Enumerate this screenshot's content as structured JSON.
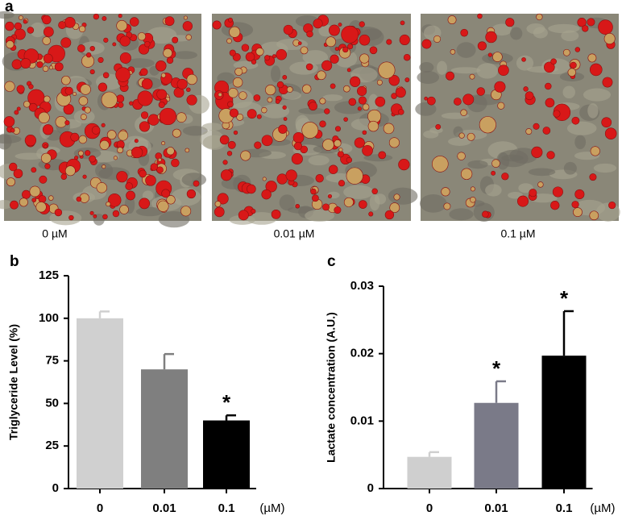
{
  "figure": {
    "panel_a": {
      "label": "a",
      "captions": [
        "0 µM",
        "0.01 µM",
        "0.1 µM"
      ]
    }
  },
  "chart_data": [
    {
      "type": "bar",
      "panel_label": "b",
      "y_label": "Triglyceride Level (%)",
      "x_unit": "(µM)",
      "categories": [
        "0",
        "0.01",
        "0.1"
      ],
      "values": [
        100,
        70,
        40
      ],
      "errors": [
        4,
        9,
        3
      ],
      "colors": [
        "#d0d0d0",
        "#7f7f7f",
        "#000000"
      ],
      "ylim": [
        0,
        125
      ],
      "yticks": [
        0,
        25,
        50,
        75,
        100,
        125
      ],
      "annotations": [
        {
          "category": "0.1",
          "text": "*"
        }
      ]
    },
    {
      "type": "bar",
      "panel_label": "c",
      "y_label": "Lactate concentration (A.U.)",
      "x_unit": "(µM)",
      "categories": [
        "0",
        "0.01",
        "0.1"
      ],
      "values": [
        0.0047,
        0.0127,
        0.0197
      ],
      "errors": [
        0.0007,
        0.0032,
        0.0066
      ],
      "colors": [
        "#cfcfcf",
        "#7a7a88",
        "#000000"
      ],
      "ylim": [
        0,
        0.03
      ],
      "yticks": [
        0,
        0.01,
        0.02,
        0.03
      ],
      "annotations": [
        {
          "category": "0.01",
          "text": "*"
        },
        {
          "category": "0.1",
          "text": "*"
        }
      ]
    }
  ]
}
